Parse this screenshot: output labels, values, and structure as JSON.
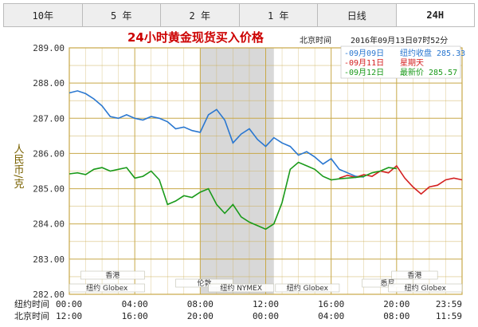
{
  "tabs": [
    {
      "label": "10年",
      "active": false
    },
    {
      "label": "5 年",
      "active": false
    },
    {
      "label": "2 年",
      "active": false
    },
    {
      "label": "1 年",
      "active": false
    },
    {
      "label": "日线",
      "active": false
    },
    {
      "label": "24H",
      "active": true
    }
  ],
  "header": {
    "title": "24小时黄金现货买入价格",
    "tz_label": "北京时间",
    "timestamp": "2016年09月13日07时52分"
  },
  "legend": [
    {
      "date": "09月09日",
      "text": "纽约收盘 285.33",
      "color": "#2a77d0"
    },
    {
      "date": "09月11日",
      "text": "星期天",
      "color": "#d42020"
    },
    {
      "date": "09月12日",
      "text": "最新价 285.57",
      "color": "#1a9a1a"
    }
  ],
  "row_labels": {
    "ny": "纽约时间",
    "bj": "北京时间"
  },
  "sessions": [
    "香港",
    "伦敦",
    "纽约 Globex",
    "纽约 NYMEX",
    "纽约 Globex",
    "香港",
    "悉尼",
    "纽约 Globex"
  ],
  "colors": {
    "grid": "#c8a848",
    "highlight": "#d8d8d8",
    "prev": "#2a77d0",
    "sunday": "#d42020",
    "latest": "#1a9a1a"
  },
  "chart_data": {
    "type": "line",
    "ylabel": "人民币/克",
    "ylim": [
      282.0,
      289.0
    ],
    "yticks": [
      "289.00",
      "288.00",
      "287.00",
      "286.00",
      "285.00",
      "284.00",
      "283.00",
      "282.00"
    ],
    "x_ticks_ny": [
      "00:00",
      "04:00",
      "08:00",
      "12:00",
      "16:00",
      "20:00",
      "23:59"
    ],
    "x_ticks_bj": [
      "12:00",
      "16:00",
      "20:00",
      "00:00",
      "04:00",
      "08:00",
      "11:59"
    ],
    "x_unit": "hours_from_ny_00:00",
    "xlim": [
      0,
      24
    ],
    "shaded_range": [
      8,
      12.5
    ],
    "series": [
      {
        "name": "09月09日",
        "color": "#2a77d0",
        "x": [
          0,
          0.5,
          1,
          1.5,
          2,
          2.5,
          3,
          3.5,
          4,
          4.5,
          5,
          5.5,
          6,
          6.5,
          7,
          7.5,
          8,
          8.5,
          9,
          9.5,
          10,
          10.5,
          11,
          11.5,
          12,
          12.5,
          13,
          13.5,
          14,
          14.5,
          15,
          15.5,
          16,
          16.5,
          17,
          17.5,
          18
        ],
        "values": [
          287.72,
          287.78,
          287.7,
          287.55,
          287.35,
          287.05,
          287.0,
          287.1,
          287.0,
          286.95,
          287.05,
          287.0,
          286.9,
          286.7,
          286.75,
          286.65,
          286.6,
          287.1,
          287.25,
          286.95,
          286.3,
          286.55,
          286.7,
          286.4,
          286.2,
          286.45,
          286.3,
          286.2,
          285.95,
          286.05,
          285.9,
          285.7,
          285.85,
          285.55,
          285.45,
          285.35,
          285.33
        ]
      },
      {
        "name": "09月11日",
        "color": "#d42020",
        "x": [
          16.5,
          17,
          17.5,
          18,
          18.5,
          19,
          19.5,
          20,
          20.5,
          21,
          21.5,
          22,
          22.5,
          23,
          23.5,
          24
        ],
        "values": [
          285.3,
          285.38,
          285.32,
          285.4,
          285.35,
          285.5,
          285.45,
          285.65,
          285.3,
          285.05,
          284.85,
          285.05,
          285.1,
          285.25,
          285.3,
          285.25
        ]
      },
      {
        "name": "09月12日",
        "color": "#1a9a1a",
        "x": [
          0,
          0.5,
          1,
          1.5,
          2,
          2.5,
          3,
          3.5,
          4,
          4.5,
          5,
          5.5,
          6,
          6.5,
          7,
          7.5,
          8,
          8.5,
          9,
          9.5,
          10,
          10.5,
          11,
          11.5,
          12,
          12.5,
          13,
          13.5,
          14,
          14.5,
          15,
          15.5,
          16,
          16.5,
          17,
          17.5,
          18,
          18.5,
          19,
          19.5,
          20
        ],
        "values": [
          285.42,
          285.45,
          285.4,
          285.55,
          285.6,
          285.5,
          285.55,
          285.6,
          285.3,
          285.35,
          285.5,
          285.25,
          284.55,
          284.65,
          284.8,
          284.75,
          284.9,
          285.0,
          284.55,
          284.3,
          284.55,
          284.2,
          284.05,
          283.95,
          283.85,
          284.0,
          284.6,
          285.55,
          285.75,
          285.65,
          285.55,
          285.35,
          285.25,
          285.28,
          285.3,
          285.32,
          285.35,
          285.45,
          285.5,
          285.6,
          285.57
        ]
      }
    ]
  }
}
